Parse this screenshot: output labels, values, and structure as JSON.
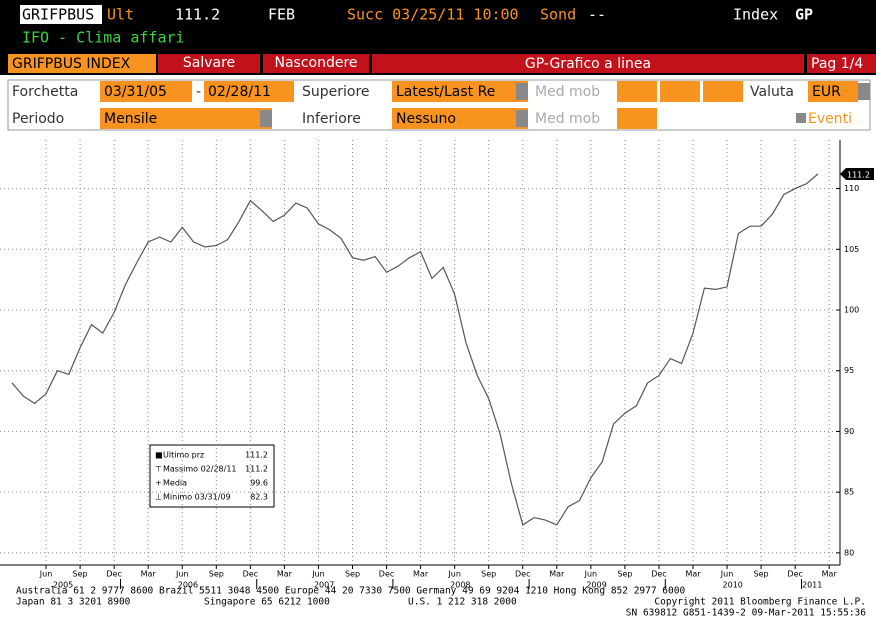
{
  "header": {
    "ticker": "GRIFPBUS",
    "ult_label": "Ult",
    "ult_value": "111.2",
    "month": "FEB",
    "succ": "Succ 03/25/11 10:00",
    "sond_label": "Sond",
    "sond_value": "--",
    "index_label": "Index",
    "index_code": "GP",
    "subtitle": "IFO - Clima affari"
  },
  "toolbar": {
    "name": "GRIFPBUS INDEX",
    "save": "Salvare",
    "hide": "Nascondere",
    "chart_type": "GP-Grafico a linea",
    "page": "Pag 1/4"
  },
  "form": {
    "range_label": "Forchetta",
    "start": "03/31/05",
    "dash": "-",
    "end": "02/28/11",
    "upper_label": "Superiore",
    "upper": "Latest/Last Re",
    "mavg_label": "Med mob",
    "currency_label": "Valuta",
    "currency": "EUR",
    "period_label": "Periodo",
    "period": "Mensile",
    "lower_label": "Inferiore",
    "lower": "Nessuno",
    "mavg2_label": "Med mob",
    "events": "Eventi"
  },
  "chart_data": {
    "type": "line",
    "color": "#555555",
    "grid": true,
    "x": [
      "2005-03",
      "2005-04",
      "2005-05",
      "2005-06",
      "2005-07",
      "2005-08",
      "2005-09",
      "2005-10",
      "2005-11",
      "2005-12",
      "2006-01",
      "2006-02",
      "2006-03",
      "2006-04",
      "2006-05",
      "2006-06",
      "2006-07",
      "2006-08",
      "2006-09",
      "2006-10",
      "2006-11",
      "2006-12",
      "2007-01",
      "2007-02",
      "2007-03",
      "2007-04",
      "2007-05",
      "2007-06",
      "2007-07",
      "2007-08",
      "2007-09",
      "2007-10",
      "2007-11",
      "2007-12",
      "2008-01",
      "2008-02",
      "2008-03",
      "2008-04",
      "2008-05",
      "2008-06",
      "2008-07",
      "2008-08",
      "2008-09",
      "2008-10",
      "2008-11",
      "2008-12",
      "2009-01",
      "2009-02",
      "2009-03",
      "2009-04",
      "2009-05",
      "2009-06",
      "2009-07",
      "2009-08",
      "2009-09",
      "2009-10",
      "2009-11",
      "2009-12",
      "2010-01",
      "2010-02",
      "2010-03",
      "2010-04",
      "2010-05",
      "2010-06",
      "2010-07",
      "2010-08",
      "2010-09",
      "2010-10",
      "2010-11",
      "2010-12",
      "2011-01",
      "2011-02"
    ],
    "values": [
      94.0,
      92.9,
      92.3,
      93.1,
      95.0,
      94.7,
      96.9,
      98.8,
      98.1,
      99.8,
      102.1,
      103.9,
      105.6,
      106.0,
      105.6,
      106.8,
      105.6,
      105.2,
      105.3,
      105.8,
      107.3,
      109.0,
      108.2,
      107.3,
      107.8,
      108.8,
      108.4,
      107.1,
      106.6,
      105.9,
      104.3,
      104.1,
      104.4,
      103.1,
      103.6,
      104.3,
      104.8,
      102.6,
      103.5,
      101.3,
      97.3,
      94.6,
      92.7,
      89.8,
      85.7,
      82.3,
      82.9,
      82.7,
      82.3,
      83.8,
      84.3,
      86.2,
      87.5,
      90.6,
      91.5,
      92.1,
      94.0,
      94.6,
      96.0,
      95.6,
      98.1,
      101.8,
      101.7,
      101.9,
      106.3,
      106.9,
      106.9,
      107.9,
      109.5,
      110.0,
      110.4,
      111.2
    ],
    "ylim": [
      79,
      114
    ],
    "yticks": [
      80,
      85,
      90,
      95,
      100,
      105,
      110
    ],
    "xticks": [
      {
        "value": "2005-06",
        "label": "Jun"
      },
      {
        "value": "2005-09",
        "label": "Sep"
      },
      {
        "value": "2005-12",
        "label": "Dec"
      },
      {
        "value": "2006-03",
        "label": "Mar"
      },
      {
        "value": "2006-06",
        "label": "Jun"
      },
      {
        "value": "2006-09",
        "label": "Sep"
      },
      {
        "value": "2006-12",
        "label": "Dec"
      },
      {
        "value": "2007-03",
        "label": "Mar"
      },
      {
        "value": "2007-06",
        "label": "Jun"
      },
      {
        "value": "2007-09",
        "label": "Sep"
      },
      {
        "value": "2007-12",
        "label": "Dec"
      },
      {
        "value": "2008-03",
        "label": "Mar"
      },
      {
        "value": "2008-06",
        "label": "Jun"
      },
      {
        "value": "2008-09",
        "label": "Sep"
      },
      {
        "value": "2008-12",
        "label": "Dec"
      },
      {
        "value": "2009-03",
        "label": "Mar"
      },
      {
        "value": "2009-06",
        "label": "Jun"
      },
      {
        "value": "2009-09",
        "label": "Sep"
      },
      {
        "value": "2009-12",
        "label": "Dec"
      },
      {
        "value": "2010-03",
        "label": "Mar"
      },
      {
        "value": "2010-06",
        "label": "Jun"
      },
      {
        "value": "2010-09",
        "label": "Sep"
      },
      {
        "value": "2010-12",
        "label": "Dec"
      },
      {
        "value": "2011-03",
        "label": "Mar"
      }
    ],
    "year_labels": [
      "2005",
      "2006",
      "2007",
      "2008",
      "2009",
      "2010",
      "2011"
    ],
    "legend": [
      {
        "label": "Ultimo prz",
        "value": 111.2
      },
      {
        "label": "Massimo 02/28/11",
        "value": 111.2
      },
      {
        "label": "Media",
        "value": 99.6
      },
      {
        "label": "Minimo 03/31/09",
        "value": 82.3
      }
    ]
  },
  "footer": {
    "line1": "Australia 61 2 9777 8600 Brazil 5511 3048 4500 Europe 44 20 7330 7500 Germany 49 69 9204 1210 Hong Kong 852 2977 6000",
    "japan": "Japan 81 3 3201 8900",
    "singapore": "Singapore 65 6212 1000",
    "us": "U.S. 1 212 318 2000",
    "copyright": "Copyright 2011 Bloomberg Finance L.P.",
    "sn": "SN 639812 G851-1439-2 09-Mar-2011 15:55:36"
  }
}
